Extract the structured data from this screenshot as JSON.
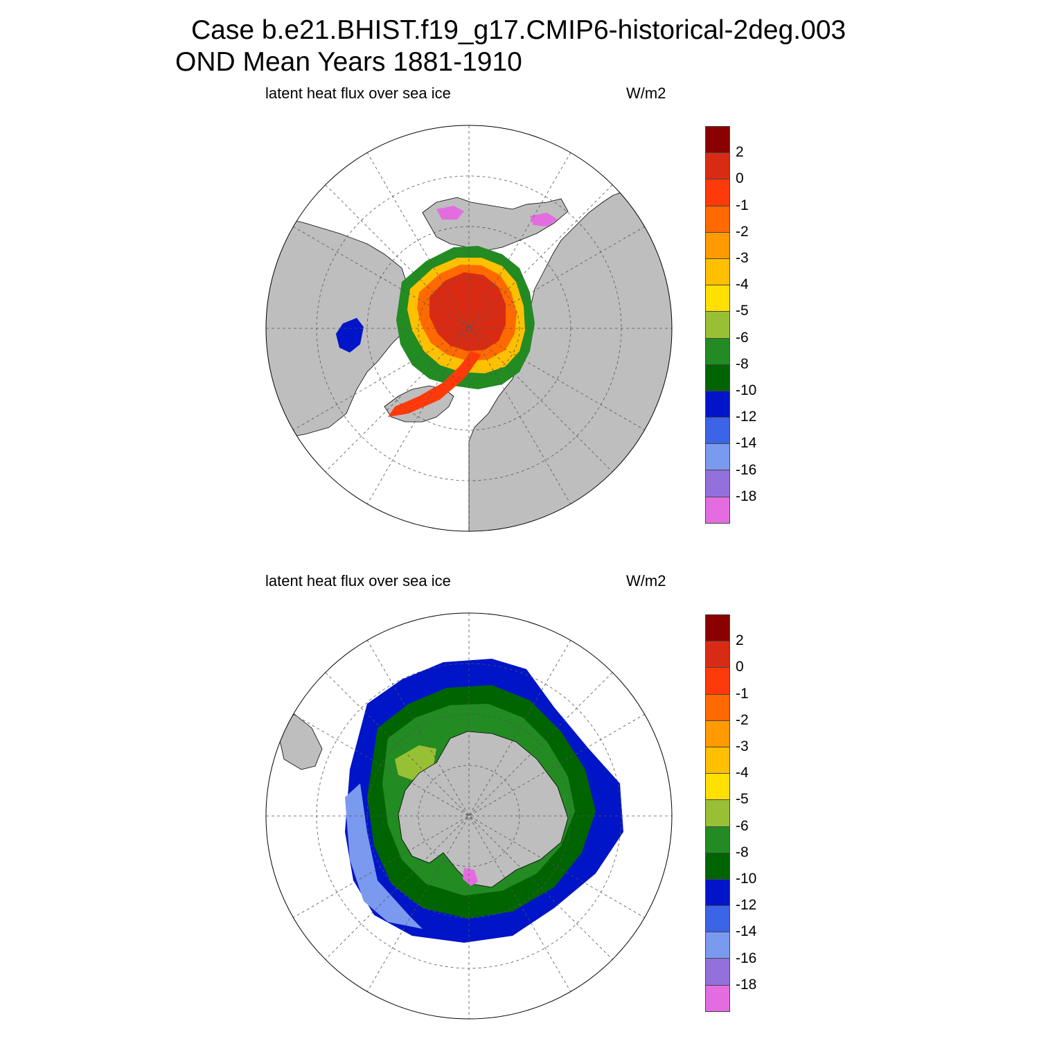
{
  "title": {
    "line1": "Case b.e21.BHIST.f19_g17.CMIP6-historical-2deg.003",
    "line2": "OND Mean   Years 1881-1910"
  },
  "panels": [
    {
      "left_label": "latent heat flux over sea ice",
      "right_label": "W/m2",
      "hemisphere": "north"
    },
    {
      "left_label": "latent heat flux over sea ice",
      "right_label": "W/m2",
      "hemisphere": "south"
    }
  ],
  "colorbar": {
    "labels": [
      "2",
      "0",
      "-1",
      "-2",
      "-3",
      "-4",
      "-5",
      "-6",
      "-8",
      "-10",
      "-12",
      "-14",
      "-16",
      "-18"
    ],
    "colors": [
      "#8b0000",
      "#d92b14",
      "#ff3a0a",
      "#ff6a00",
      "#ff9a00",
      "#ffc000",
      "#ffe000",
      "#98c034",
      "#228b22",
      "#006400",
      "#0014c8",
      "#3c64e6",
      "#7a9af0",
      "#9370db",
      "#e36de0"
    ]
  },
  "map_colors": {
    "land": "#bebebe",
    "ocean": "#ffffff",
    "grid": "#555555"
  }
}
